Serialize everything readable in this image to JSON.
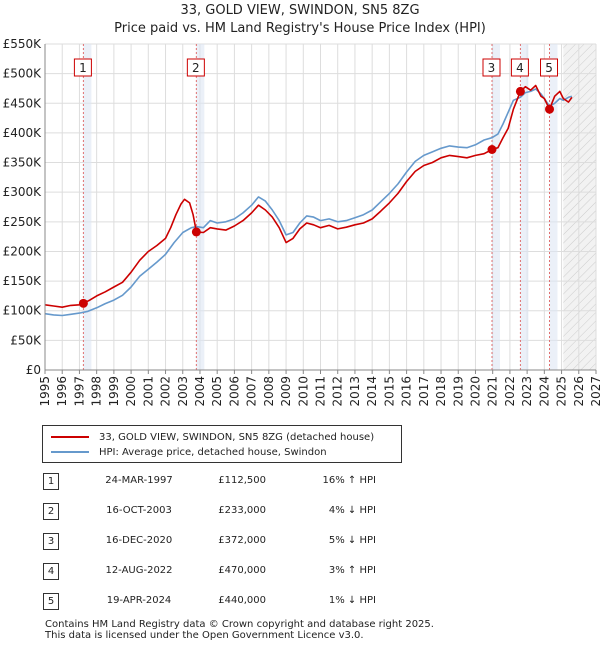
{
  "chart_data": {
    "type": "line",
    "title": "33, GOLD VIEW, SWINDON, SN5 8ZG",
    "subtitle": "Price paid vs. HM Land Registry's House Price Index (HPI)",
    "xlim": [
      1995,
      2027
    ],
    "ylim": [
      0,
      550000
    ],
    "x_ticks": [
      1995,
      1996,
      1997,
      1998,
      1999,
      2000,
      2001,
      2002,
      2003,
      2004,
      2005,
      2006,
      2007,
      2008,
      2009,
      2010,
      2011,
      2012,
      2013,
      2014,
      2015,
      2016,
      2017,
      2018,
      2019,
      2020,
      2021,
      2022,
      2023,
      2024,
      2025,
      2026,
      2027
    ],
    "y_ticks": [
      {
        "value": 0,
        "label": "£0"
      },
      {
        "value": 50000,
        "label": "£50K"
      },
      {
        "value": 100000,
        "label": "£100K"
      },
      {
        "value": 150000,
        "label": "£150K"
      },
      {
        "value": 200000,
        "label": "£200K"
      },
      {
        "value": 250000,
        "label": "£250K"
      },
      {
        "value": 300000,
        "label": "£300K"
      },
      {
        "value": 350000,
        "label": "£350K"
      },
      {
        "value": 400000,
        "label": "£400K"
      },
      {
        "value": 450000,
        "label": "£450K"
      },
      {
        "value": 500000,
        "label": "£500K"
      },
      {
        "value": 550000,
        "label": "£550K"
      }
    ],
    "future_start": 2025.1,
    "series": [
      {
        "name": "33, GOLD VIEW, SWINDON, SN5 8ZG (detached house)",
        "color": "#cc0000",
        "points": [
          [
            1995.0,
            110000
          ],
          [
            1995.5,
            108000
          ],
          [
            1996.0,
            106000
          ],
          [
            1996.5,
            109000
          ],
          [
            1997.0,
            110000
          ],
          [
            1997.23,
            112500
          ],
          [
            1997.6,
            118000
          ],
          [
            1998.0,
            125000
          ],
          [
            1998.5,
            132000
          ],
          [
            1999.0,
            140000
          ],
          [
            1999.5,
            148000
          ],
          [
            2000.0,
            165000
          ],
          [
            2000.5,
            185000
          ],
          [
            2001.0,
            200000
          ],
          [
            2001.5,
            210000
          ],
          [
            2002.0,
            222000
          ],
          [
            2002.3,
            240000
          ],
          [
            2002.6,
            262000
          ],
          [
            2002.9,
            280000
          ],
          [
            2003.1,
            288000
          ],
          [
            2003.4,
            282000
          ],
          [
            2003.6,
            262000
          ],
          [
            2003.79,
            233000
          ],
          [
            2004.2,
            232000
          ],
          [
            2004.6,
            240000
          ],
          [
            2005.0,
            238000
          ],
          [
            2005.5,
            236000
          ],
          [
            2006.0,
            243000
          ],
          [
            2006.5,
            252000
          ],
          [
            2007.0,
            265000
          ],
          [
            2007.4,
            278000
          ],
          [
            2007.8,
            270000
          ],
          [
            2008.2,
            258000
          ],
          [
            2008.6,
            240000
          ],
          [
            2009.0,
            215000
          ],
          [
            2009.4,
            222000
          ],
          [
            2009.8,
            238000
          ],
          [
            2010.2,
            248000
          ],
          [
            2010.6,
            245000
          ],
          [
            2011.0,
            240000
          ],
          [
            2011.5,
            244000
          ],
          [
            2012.0,
            238000
          ],
          [
            2012.5,
            241000
          ],
          [
            2013.0,
            245000
          ],
          [
            2013.5,
            248000
          ],
          [
            2014.0,
            255000
          ],
          [
            2014.5,
            268000
          ],
          [
            2015.0,
            282000
          ],
          [
            2015.5,
            298000
          ],
          [
            2016.0,
            318000
          ],
          [
            2016.5,
            335000
          ],
          [
            2017.0,
            345000
          ],
          [
            2017.5,
            350000
          ],
          [
            2018.0,
            358000
          ],
          [
            2018.5,
            362000
          ],
          [
            2019.0,
            360000
          ],
          [
            2019.5,
            358000
          ],
          [
            2020.0,
            362000
          ],
          [
            2020.5,
            365000
          ],
          [
            2020.96,
            372000
          ],
          [
            2021.3,
            375000
          ],
          [
            2021.6,
            392000
          ],
          [
            2021.9,
            408000
          ],
          [
            2022.2,
            440000
          ],
          [
            2022.61,
            470000
          ],
          [
            2022.9,
            478000
          ],
          [
            2023.2,
            472000
          ],
          [
            2023.5,
            480000
          ],
          [
            2023.8,
            462000
          ],
          [
            2024.0,
            458000
          ],
          [
            2024.3,
            440000
          ],
          [
            2024.6,
            462000
          ],
          [
            2024.9,
            470000
          ],
          [
            2025.1,
            458000
          ],
          [
            2025.4,
            452000
          ],
          [
            2025.6,
            460000
          ]
        ]
      },
      {
        "name": "HPI: Average price, detached house, Swindon",
        "color": "#6699cc",
        "points": [
          [
            1995.0,
            95000
          ],
          [
            1995.5,
            93000
          ],
          [
            1996.0,
            92000
          ],
          [
            1996.5,
            94000
          ],
          [
            1997.0,
            96000
          ],
          [
            1997.5,
            99000
          ],
          [
            1998.0,
            105000
          ],
          [
            1998.5,
            112000
          ],
          [
            1999.0,
            118000
          ],
          [
            1999.5,
            126000
          ],
          [
            2000.0,
            140000
          ],
          [
            2000.5,
            158000
          ],
          [
            2001.0,
            170000
          ],
          [
            2001.5,
            182000
          ],
          [
            2002.0,
            195000
          ],
          [
            2002.5,
            215000
          ],
          [
            2003.0,
            232000
          ],
          [
            2003.5,
            240000
          ],
          [
            2003.8,
            242000
          ],
          [
            2004.2,
            240000
          ],
          [
            2004.6,
            252000
          ],
          [
            2005.0,
            248000
          ],
          [
            2005.5,
            250000
          ],
          [
            2006.0,
            255000
          ],
          [
            2006.5,
            265000
          ],
          [
            2007.0,
            278000
          ],
          [
            2007.4,
            292000
          ],
          [
            2007.8,
            285000
          ],
          [
            2008.2,
            270000
          ],
          [
            2008.6,
            252000
          ],
          [
            2009.0,
            228000
          ],
          [
            2009.4,
            232000
          ],
          [
            2009.8,
            248000
          ],
          [
            2010.2,
            260000
          ],
          [
            2010.6,
            258000
          ],
          [
            2011.0,
            252000
          ],
          [
            2011.5,
            255000
          ],
          [
            2012.0,
            250000
          ],
          [
            2012.5,
            252000
          ],
          [
            2013.0,
            257000
          ],
          [
            2013.5,
            262000
          ],
          [
            2014.0,
            270000
          ],
          [
            2014.5,
            284000
          ],
          [
            2015.0,
            298000
          ],
          [
            2015.5,
            314000
          ],
          [
            2016.0,
            334000
          ],
          [
            2016.5,
            352000
          ],
          [
            2017.0,
            362000
          ],
          [
            2017.5,
            368000
          ],
          [
            2018.0,
            374000
          ],
          [
            2018.5,
            378000
          ],
          [
            2019.0,
            376000
          ],
          [
            2019.5,
            375000
          ],
          [
            2020.0,
            380000
          ],
          [
            2020.5,
            388000
          ],
          [
            2020.96,
            392000
          ],
          [
            2021.3,
            398000
          ],
          [
            2021.6,
            415000
          ],
          [
            2021.9,
            435000
          ],
          [
            2022.2,
            455000
          ],
          [
            2022.61,
            460000
          ],
          [
            2022.9,
            468000
          ],
          [
            2023.2,
            470000
          ],
          [
            2023.5,
            474000
          ],
          [
            2023.8,
            466000
          ],
          [
            2024.0,
            458000
          ],
          [
            2024.3,
            445000
          ],
          [
            2024.6,
            450000
          ],
          [
            2024.9,
            458000
          ],
          [
            2025.1,
            455000
          ],
          [
            2025.4,
            460000
          ],
          [
            2025.6,
            462000
          ]
        ]
      }
    ],
    "markers": [
      {
        "label": "1",
        "x": 1997.23,
        "y": 112500
      },
      {
        "label": "2",
        "x": 2003.79,
        "y": 233000
      },
      {
        "label": "3",
        "x": 2020.96,
        "y": 372000
      },
      {
        "label": "4",
        "x": 2022.61,
        "y": 470000
      },
      {
        "label": "5",
        "x": 2024.3,
        "y": 440000
      }
    ]
  },
  "legend": {
    "red_label": "33, GOLD VIEW, SWINDON, SN5 8ZG (detached house)",
    "blue_label": "HPI: Average price, detached house, Swindon"
  },
  "transactions": [
    {
      "num": "1",
      "date": "24-MAR-1997",
      "price": "£112,500",
      "hpi": "16% ↑ HPI"
    },
    {
      "num": "2",
      "date": "16-OCT-2003",
      "price": "£233,000",
      "hpi": "4% ↓ HPI"
    },
    {
      "num": "3",
      "date": "16-DEC-2020",
      "price": "£372,000",
      "hpi": "5% ↓ HPI"
    },
    {
      "num": "4",
      "date": "12-AUG-2022",
      "price": "£470,000",
      "hpi": "3% ↑ HPI"
    },
    {
      "num": "5",
      "date": "19-APR-2024",
      "price": "£440,000",
      "hpi": "1% ↓ HPI"
    }
  ],
  "footer": {
    "line1": "Contains HM Land Registry data © Crown copyright and database right 2025.",
    "line2": "This data is licensed under the Open Government Licence v3.0."
  }
}
